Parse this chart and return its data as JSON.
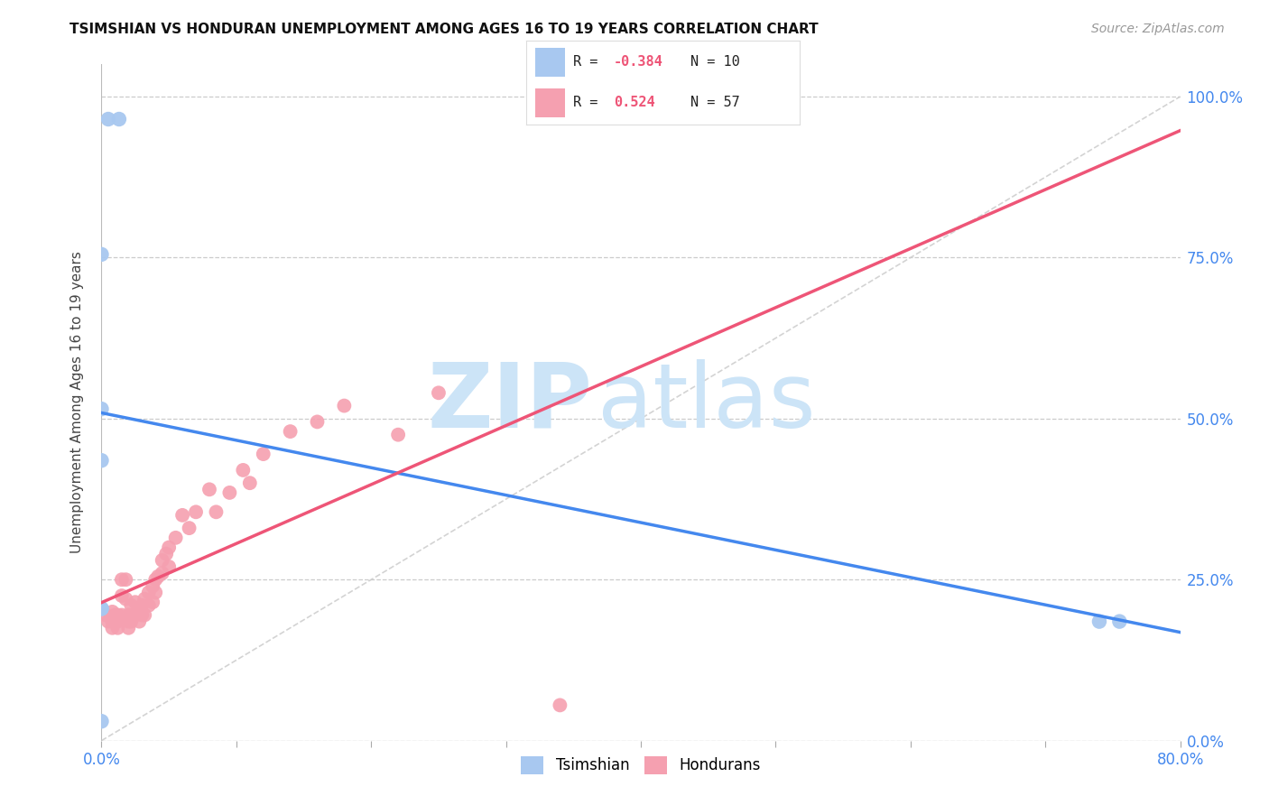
{
  "title": "TSIMSHIAN VS HONDURAN UNEMPLOYMENT AMONG AGES 16 TO 19 YEARS CORRELATION CHART",
  "source": "Source: ZipAtlas.com",
  "ylabel": "Unemployment Among Ages 16 to 19 years",
  "xlim": [
    0.0,
    0.8
  ],
  "ylim": [
    0.0,
    1.05
  ],
  "xticks": [
    0.0,
    0.1,
    0.2,
    0.3,
    0.4,
    0.5,
    0.6,
    0.7,
    0.8
  ],
  "xticklabels": [
    "0.0%",
    "",
    "",
    "",
    "",
    "",
    "",
    "",
    "80.0%"
  ],
  "ytick_positions": [
    0.0,
    0.25,
    0.5,
    0.75,
    1.0
  ],
  "ytick_labels_right": [
    "0.0%",
    "25.0%",
    "50.0%",
    "75.0%",
    "100.0%"
  ],
  "grid_color": "#cccccc",
  "background_color": "#ffffff",
  "tsimshian_color": "#a8c8f0",
  "honduran_color": "#f5a0b0",
  "tsimshian_line_color": "#4488ee",
  "honduran_line_color": "#ee5577",
  "ref_line_color": "#cccccc",
  "legend_r_tsimshian": "-0.384",
  "legend_n_tsimshian": "10",
  "legend_r_honduran": "0.524",
  "legend_n_honduran": "57",
  "tsimshian_x": [
    0.005,
    0.013,
    0.0,
    0.0,
    0.0,
    0.0,
    0.0,
    0.0,
    0.74,
    0.755
  ],
  "tsimshian_y": [
    0.965,
    0.965,
    0.755,
    0.515,
    0.435,
    0.205,
    0.205,
    0.03,
    0.185,
    0.185
  ],
  "honduran_x": [
    0.003,
    0.005,
    0.008,
    0.008,
    0.008,
    0.01,
    0.01,
    0.012,
    0.012,
    0.012,
    0.015,
    0.015,
    0.015,
    0.018,
    0.018,
    0.02,
    0.02,
    0.02,
    0.022,
    0.022,
    0.022,
    0.025,
    0.025,
    0.028,
    0.028,
    0.03,
    0.03,
    0.032,
    0.032,
    0.035,
    0.035,
    0.038,
    0.038,
    0.04,
    0.04,
    0.042,
    0.045,
    0.045,
    0.048,
    0.05,
    0.05,
    0.055,
    0.06,
    0.065,
    0.07,
    0.08,
    0.085,
    0.095,
    0.105,
    0.11,
    0.12,
    0.14,
    0.16,
    0.18,
    0.22,
    0.25,
    0.34
  ],
  "honduran_y": [
    0.195,
    0.185,
    0.2,
    0.185,
    0.175,
    0.195,
    0.185,
    0.195,
    0.185,
    0.175,
    0.25,
    0.225,
    0.195,
    0.25,
    0.22,
    0.195,
    0.185,
    0.175,
    0.21,
    0.195,
    0.185,
    0.215,
    0.195,
    0.205,
    0.185,
    0.21,
    0.195,
    0.22,
    0.195,
    0.23,
    0.21,
    0.24,
    0.215,
    0.25,
    0.23,
    0.255,
    0.28,
    0.26,
    0.29,
    0.3,
    0.27,
    0.315,
    0.35,
    0.33,
    0.355,
    0.39,
    0.355,
    0.385,
    0.42,
    0.4,
    0.445,
    0.48,
    0.495,
    0.52,
    0.475,
    0.54,
    0.055
  ],
  "watermark_zip": "ZIP",
  "watermark_atlas": "atlas",
  "watermark_color": "#cce4f7",
  "watermark_fontsize": 72
}
